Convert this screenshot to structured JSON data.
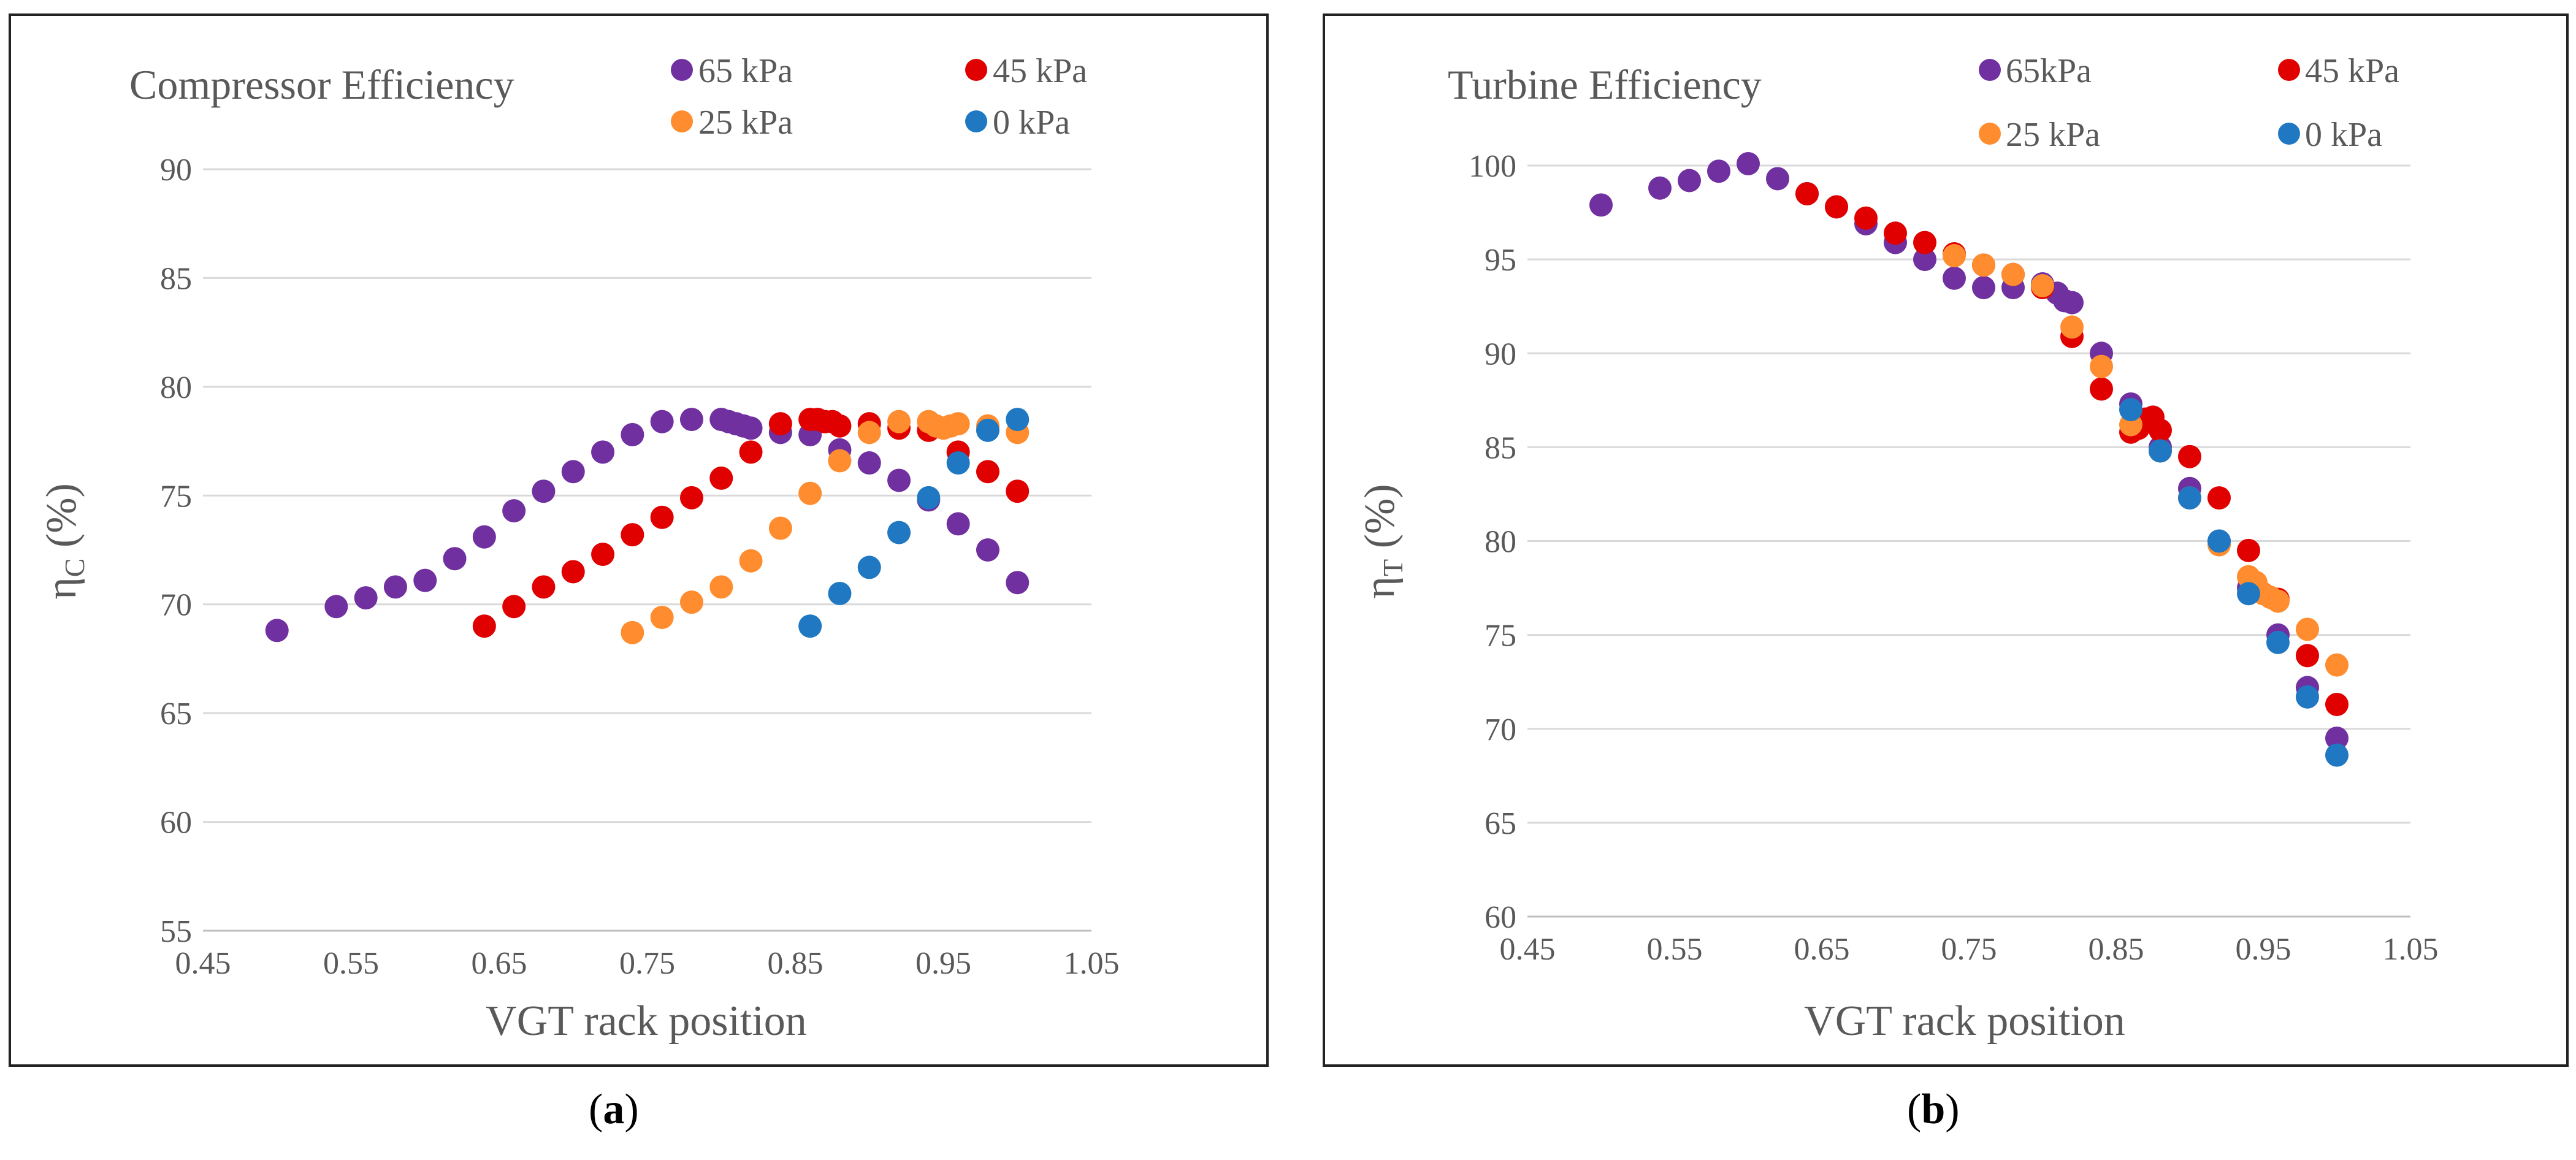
{
  "captions": {
    "a_open": "(",
    "a_letter": "a",
    "a_close": ")",
    "b_open": "(",
    "b_letter": "b",
    "b_close": ")"
  },
  "colors": {
    "p65": "#7030a0",
    "p45": "#e00000",
    "p25": "#ff8c2e",
    "p0": "#1f78c1"
  },
  "chart_data": [
    {
      "type": "scatter",
      "title": "Compressor Efficiency",
      "xlabel": "VGT rack position",
      "ylabel_main": "η",
      "ylabel_sub": "C",
      "ylabel_unit": " (%)",
      "xlim": [
        0.45,
        1.05
      ],
      "ylim": [
        55,
        90
      ],
      "xticks": [
        "0.45",
        "0.55",
        "0.65",
        "0.75",
        "0.85",
        "0.95",
        "1.05"
      ],
      "yticks": [
        "55",
        "60",
        "65",
        "70",
        "75",
        "80",
        "85",
        "90"
      ],
      "series": [
        {
          "name": "65 kPa",
          "color": "#7030a0",
          "x": [
            0.5,
            0.54,
            0.56,
            0.58,
            0.6,
            0.62,
            0.64,
            0.66,
            0.68,
            0.7,
            0.72,
            0.74,
            0.76,
            0.78,
            0.8,
            0.805,
            0.81,
            0.815,
            0.82,
            0.84,
            0.86,
            0.88,
            0.9,
            0.92,
            0.94,
            0.96,
            0.98,
            1.0
          ],
          "y": [
            68.8,
            69.9,
            70.3,
            70.8,
            71.1,
            72.1,
            73.1,
            74.3,
            75.2,
            76.1,
            77.0,
            77.8,
            78.4,
            78.5,
            78.5,
            78.4,
            78.3,
            78.2,
            78.1,
            77.9,
            77.8,
            77.1,
            76.5,
            75.7,
            74.8,
            73.7,
            72.5,
            71.0
          ]
        },
        {
          "name": "45 kPa",
          "color": "#e00000",
          "x": [
            0.64,
            0.66,
            0.68,
            0.7,
            0.72,
            0.74,
            0.76,
            0.78,
            0.8,
            0.82,
            0.84,
            0.86,
            0.865,
            0.87,
            0.875,
            0.88,
            0.9,
            0.92,
            0.94,
            0.96,
            0.98,
            1.0
          ],
          "y": [
            69.0,
            69.9,
            70.8,
            71.5,
            72.3,
            73.2,
            74.0,
            74.9,
            75.8,
            77.0,
            78.3,
            78.5,
            78.5,
            78.4,
            78.4,
            78.2,
            78.3,
            78.1,
            78.0,
            77.0,
            76.1,
            75.2
          ]
        },
        {
          "name": "25 kPa",
          "color": "#ff8c2e",
          "x": [
            0.74,
            0.76,
            0.78,
            0.8,
            0.82,
            0.84,
            0.86,
            0.88,
            0.9,
            0.92,
            0.94,
            0.945,
            0.95,
            0.955,
            0.96,
            0.98,
            1.0
          ],
          "y": [
            68.7,
            69.4,
            70.1,
            70.8,
            72.0,
            73.5,
            75.1,
            76.6,
            77.9,
            78.4,
            78.4,
            78.2,
            78.1,
            78.2,
            78.3,
            78.2,
            77.9
          ]
        },
        {
          "name": "0 kPa",
          "color": "#1f78c1",
          "x": [
            0.86,
            0.88,
            0.9,
            0.92,
            0.94,
            0.96,
            0.98,
            1.0
          ],
          "y": [
            69.0,
            70.5,
            71.7,
            73.3,
            74.9,
            76.5,
            78.0,
            78.5
          ]
        }
      ]
    },
    {
      "type": "scatter",
      "title": "Turbine Efficiency",
      "xlabel": "VGT rack position",
      "ylabel_main": "η",
      "ylabel_sub": "T",
      "ylabel_unit": " (%)",
      "xlim": [
        0.45,
        1.05
      ],
      "ylim": [
        60,
        100
      ],
      "xticks": [
        "0.45",
        "0.55",
        "0.65",
        "0.75",
        "0.85",
        "0.95",
        "1.05"
      ],
      "yticks": [
        "60",
        "65",
        "70",
        "75",
        "80",
        "85",
        "90",
        "95",
        "100"
      ],
      "series": [
        {
          "name": "65kPa",
          "color": "#7030a0",
          "x": [
            0.5,
            0.54,
            0.56,
            0.58,
            0.6,
            0.62,
            0.64,
            0.66,
            0.68,
            0.7,
            0.72,
            0.74,
            0.76,
            0.78,
            0.8,
            0.81,
            0.815,
            0.82,
            0.84,
            0.86,
            0.88,
            0.9,
            0.92,
            0.94,
            0.96,
            0.98,
            1.0
          ],
          "y": [
            97.9,
            98.8,
            99.2,
            99.7,
            100.1,
            99.3,
            98.5,
            97.8,
            96.9,
            95.9,
            95.0,
            94.0,
            93.5,
            93.5,
            93.7,
            93.2,
            92.8,
            92.7,
            90.0,
            87.3,
            85.0,
            82.8,
            80.0,
            77.5,
            75.0,
            72.2,
            69.5
          ]
        },
        {
          "name": "45 kPa",
          "color": "#e00000",
          "x": [
            0.64,
            0.66,
            0.68,
            0.7,
            0.72,
            0.74,
            0.76,
            0.78,
            0.8,
            0.82,
            0.84,
            0.86,
            0.865,
            0.87,
            0.875,
            0.88,
            0.9,
            0.92,
            0.94,
            0.96,
            0.98,
            1.0
          ],
          "y": [
            98.5,
            97.8,
            97.2,
            96.4,
            95.9,
            95.3,
            94.7,
            94.2,
            93.5,
            90.9,
            88.1,
            85.8,
            86.0,
            86.5,
            86.6,
            85.9,
            84.5,
            82.3,
            79.5,
            76.9,
            73.9,
            71.3
          ]
        },
        {
          "name": "25 kPa",
          "color": "#ff8c2e",
          "x": [
            0.74,
            0.76,
            0.78,
            0.8,
            0.82,
            0.84,
            0.86,
            0.88,
            0.9,
            0.92,
            0.94,
            0.945,
            0.95,
            0.955,
            0.96,
            0.98,
            1.0
          ],
          "y": [
            95.2,
            94.7,
            94.2,
            93.6,
            91.4,
            89.3,
            86.2,
            84.8,
            82.3,
            79.8,
            78.1,
            77.8,
            77.2,
            77.0,
            76.8,
            75.3,
            73.4
          ]
        },
        {
          "name": "0 kPa",
          "color": "#1f78c1",
          "x": [
            0.86,
            0.88,
            0.9,
            0.92,
            0.94,
            0.96,
            0.98,
            1.0
          ],
          "y": [
            87.0,
            84.8,
            82.3,
            80.0,
            77.2,
            74.6,
            71.7,
            68.6
          ]
        }
      ]
    }
  ]
}
